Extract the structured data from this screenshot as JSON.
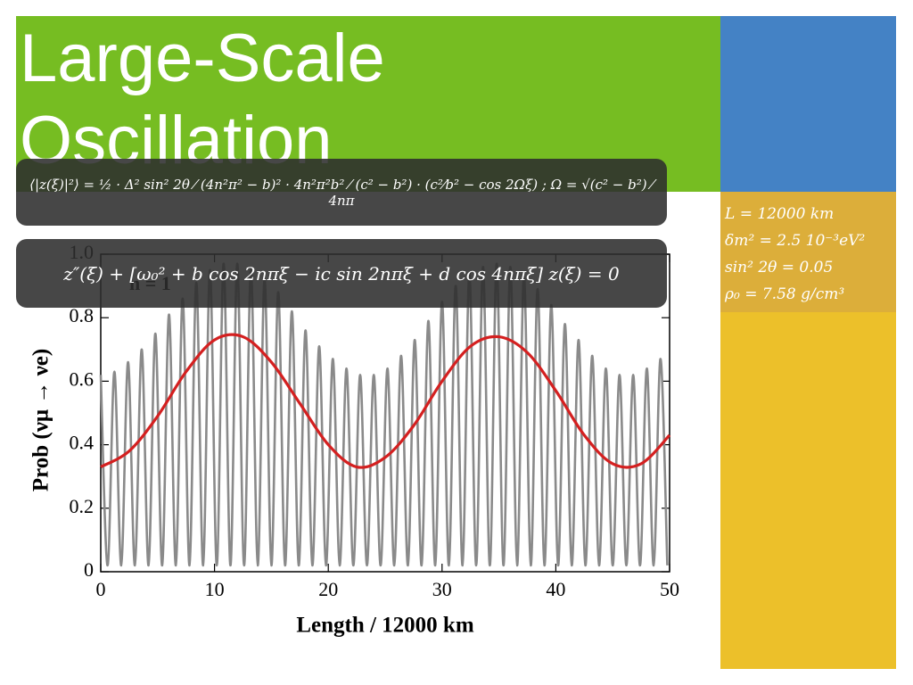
{
  "slide": {
    "title": "Large-Scale Oscillation",
    "formulas": [
      "⟨|z(ξ)|²⟩ = ½ · Δ² sin² 2θ ⁄ (4n²π² − b)² · 4n²π²b² ⁄ (c² − b²) · (c²⁄b² − cos 2Ωξ) ;   Ω = √(c² − b²) ⁄ 4nπ",
      "z″(ξ) + [ω₀² + b cos 2nπξ − ic sin 2nπξ + d cos 4nπξ] z(ξ) = 0"
    ],
    "parameters": [
      "L = 12000 km",
      "δm² = 2.5 10⁻³eV²",
      "sin² 2θ = 0.05",
      "ρ₀ = 7.58 g/cm³"
    ]
  },
  "chart_data": {
    "type": "line",
    "x_label": "Length / 12000 km",
    "y_label": "Prob (νμ → νe)",
    "annotation": "n = 1",
    "xlim": [
      0,
      50
    ],
    "ylim": [
      0,
      1
    ],
    "xticks": [
      0,
      10,
      20,
      30,
      40,
      50
    ],
    "yticks": [
      0,
      0.2,
      0.4,
      0.6,
      0.8,
      {
        "value": 1,
        "label": "1.0"
      }
    ],
    "series": [
      {
        "color": "#8a8a8a",
        "x": [
          0,
          0.6,
          1.2,
          1.8,
          2.4,
          3,
          3.6,
          4.2,
          4.8,
          5.4,
          6,
          6.6,
          7.2,
          7.8,
          8.4,
          9,
          9.6,
          10.2,
          10.8,
          11.4,
          12,
          12.6,
          13.2,
          13.8,
          14.4,
          15,
          15.6,
          16.2,
          16.8,
          17.4,
          18,
          18.6,
          19.2,
          19.8,
          20.4,
          21,
          21.6,
          22.2,
          22.8,
          23.4,
          24,
          24.6,
          25.2,
          25.8,
          26.4,
          27,
          27.6,
          28.2,
          28.8,
          29.4,
          30,
          30.6,
          31.2,
          31.8,
          32.4,
          33,
          33.6,
          34.2,
          34.8,
          35.4,
          36,
          36.6,
          37.2,
          37.8,
          38.4,
          39,
          39.6,
          40.2,
          40.8,
          41.4,
          42,
          42.6,
          43.2,
          43.8,
          44.4,
          45,
          45.6,
          46.2,
          46.8,
          47.4,
          48,
          48.6,
          49.2,
          49.8
        ],
        "values": [
          0.62,
          0.02,
          0.63,
          0.02,
          0.66,
          0.02,
          0.7,
          0.02,
          0.75,
          0.02,
          0.81,
          0.02,
          0.86,
          0.02,
          0.91,
          0.02,
          0.95,
          0.02,
          0.97,
          0.02,
          0.97,
          0.02,
          0.95,
          0.02,
          0.92,
          0.02,
          0.88,
          0.02,
          0.82,
          0.02,
          0.76,
          0.02,
          0.71,
          0.02,
          0.67,
          0.02,
          0.64,
          0.02,
          0.62,
          0.02,
          0.62,
          0.02,
          0.64,
          0.02,
          0.68,
          0.02,
          0.73,
          0.02,
          0.79,
          0.02,
          0.85,
          0.02,
          0.9,
          0.02,
          0.94,
          0.02,
          0.96,
          0.02,
          0.97,
          0.02,
          0.96,
          0.02,
          0.93,
          0.02,
          0.89,
          0.02,
          0.84,
          0.02,
          0.78,
          0.02,
          0.73,
          0.02,
          0.68,
          0.02,
          0.64,
          0.02,
          0.62,
          0.02,
          0.62,
          0.02,
          0.64,
          0.02,
          0.67,
          0.02
        ]
      },
      {
        "color": "#d42020",
        "x": [
          0,
          2.5,
          5,
          7.5,
          10,
          12.5,
          15,
          17.5,
          20,
          22.5,
          25,
          27.5,
          30,
          32.5,
          35,
          37.5,
          40,
          42.5,
          45,
          47.5,
          50
        ],
        "values": [
          0.33,
          0.38,
          0.49,
          0.63,
          0.73,
          0.74,
          0.66,
          0.53,
          0.4,
          0.33,
          0.36,
          0.46,
          0.6,
          0.71,
          0.74,
          0.69,
          0.57,
          0.43,
          0.34,
          0.34,
          0.43
        ]
      }
    ]
  }
}
